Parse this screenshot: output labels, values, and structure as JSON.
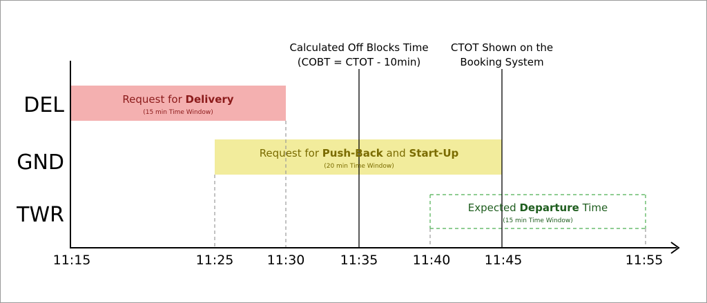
{
  "diagram": {
    "rows": {
      "del": "DEL",
      "gnd": "GND",
      "twr": "TWR"
    },
    "ticks": [
      "11:15",
      "11:25",
      "11:30",
      "11:35",
      "11:40",
      "11:45",
      "11:55"
    ],
    "annotations": {
      "cobt_line1": "Calculated Off Blocks Time",
      "cobt_line2": "(COBT = CTOT - 10min)",
      "ctot_line1": "CTOT Shown on the",
      "ctot_line2": "Booking System"
    },
    "bars": {
      "delivery": {
        "prefix": "Request for ",
        "bold": "Delivery",
        "sub": "(15 min Time Window)",
        "fill": "#f4b0b0",
        "text_color": "#8b1a1a"
      },
      "pushback": {
        "prefix": "Request for ",
        "bold1": "Push-Back",
        "mid": " and ",
        "bold2": "Start-Up",
        "sub": "(20 min Time Window)",
        "fill": "#f2ec9c",
        "text_color": "#7a6b00"
      },
      "departure": {
        "prefix": "Expected ",
        "bold": "Departure",
        "suffix": " Time",
        "sub": "(15 min Time Window)",
        "stroke": "#4caf50",
        "text_color": "#1e5d1e"
      }
    }
  }
}
